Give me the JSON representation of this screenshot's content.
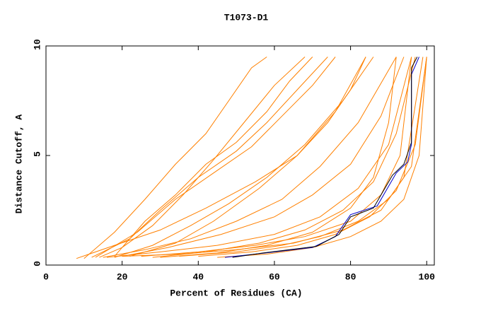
{
  "chart_data": {
    "type": "line",
    "title": "T1073-D1",
    "x_label": "Percent of Residues (CA)",
    "y_label": "Distance Cutoff, A",
    "xlim": [
      0,
      102
    ],
    "ylim": [
      0,
      10
    ],
    "xticks": [
      0,
      20,
      40,
      60,
      80,
      100
    ],
    "yticks": [
      0,
      5,
      10
    ],
    "series": [
      {
        "color": "#ff8000",
        "x": [
          14,
          20,
          28,
          36,
          44,
          52,
          60,
          68
        ],
        "values": [
          0.35,
          0.8,
          1.8,
          3.2,
          4.8,
          6.5,
          8.2,
          9.5
        ]
      },
      {
        "color": "#ff8000",
        "x": [
          10,
          18,
          26,
          34,
          42,
          48,
          54,
          58
        ],
        "values": [
          0.3,
          1.5,
          3,
          4.6,
          6,
          7.5,
          9,
          9.5
        ]
      },
      {
        "color": "#ff8000",
        "x": [
          16,
          30,
          45,
          60,
          72,
          82,
          90,
          96
        ],
        "values": [
          0.35,
          0.6,
          0.9,
          1.4,
          2.2,
          3.5,
          5.5,
          9.5
        ]
      },
      {
        "color": "#ff8000",
        "x": [
          20,
          35,
          50,
          65,
          78,
          88,
          94,
          99
        ],
        "values": [
          0.4,
          0.5,
          0.7,
          1,
          1.6,
          2.5,
          4,
          9.5
        ]
      },
      {
        "color": "#ff8000",
        "x": [
          30,
          45,
          58,
          70,
          80,
          86,
          90,
          92
        ],
        "values": [
          0.35,
          0.55,
          0.9,
          1.5,
          2.6,
          4,
          6.5,
          9.5
        ]
      },
      {
        "color": "#ff8000",
        "x": [
          12,
          22,
          30,
          40,
          50,
          58,
          66,
          74
        ],
        "values": [
          0.35,
          1.2,
          2.5,
          4,
          5.2,
          6.5,
          8,
          9.5
        ]
      },
      {
        "color": "#ff8000",
        "x": [
          25,
          40,
          55,
          68,
          80,
          88,
          93,
          96
        ],
        "values": [
          0.4,
          0.6,
          0.9,
          1.3,
          2,
          3.2,
          5,
          9.5
        ]
      },
      {
        "color": "#ff8000",
        "x": [
          18,
          28,
          38,
          48,
          58,
          68,
          78,
          86
        ],
        "values": [
          0.35,
          0.9,
          1.8,
          2.8,
          4,
          5.5,
          7.5,
          9.5
        ]
      },
      {
        "color": "#ff8000",
        "x": [
          8,
          18,
          30,
          42,
          55,
          66,
          76,
          84
        ],
        "values": [
          0.3,
          0.9,
          1.6,
          2.6,
          3.8,
          5,
          7,
          9.5
        ]
      },
      {
        "color": "#ff8000",
        "x": [
          35,
          50,
          62,
          72,
          82,
          90,
          96,
          100
        ],
        "values": [
          0.4,
          0.6,
          0.9,
          1.3,
          2,
          3,
          4.5,
          9.5
        ]
      },
      {
        "color": "#ff8000",
        "x": [
          22,
          34,
          44,
          56,
          66,
          74,
          80,
          84
        ],
        "values": [
          0.4,
          1,
          2,
          3.5,
          5,
          6.5,
          8,
          9.5
        ]
      },
      {
        "color": "#ff8000",
        "x": [
          15,
          26,
          38,
          50,
          62,
          72,
          82,
          92
        ],
        "values": [
          0.35,
          0.7,
          1.2,
          2,
          3,
          4.5,
          6.5,
          9.5
        ]
      },
      {
        "color": "#ff8000",
        "x": [
          28,
          42,
          56,
          68,
          78,
          86,
          92,
          97
        ],
        "values": [
          0.35,
          0.6,
          1,
          1.6,
          2.5,
          3.8,
          6,
          9.5
        ]
      },
      {
        "color": "#ff8000",
        "x": [
          40,
          54,
          66,
          76,
          85,
          92,
          97,
          100
        ],
        "values": [
          0.4,
          0.6,
          0.9,
          1.4,
          2.2,
          3.4,
          5.5,
          9.5
        ]
      },
      {
        "color": "#ff8000",
        "x": [
          13,
          24,
          34,
          44,
          54,
          62,
          70,
          76
        ],
        "values": [
          0.35,
          1.5,
          3,
          4.2,
          5.4,
          6.8,
          8.2,
          9.5
        ]
      },
      {
        "color": "#ff8000",
        "x": [
          20,
          32,
          46,
          60,
          70,
          80,
          88,
          94
        ],
        "values": [
          0.4,
          0.8,
          1.4,
          2.2,
          3.2,
          4.6,
          6.8,
          9.5
        ]
      },
      {
        "color": "#ff8000",
        "x": [
          18,
          26,
          34,
          42,
          50,
          58,
          64,
          70
        ],
        "values": [
          0.4,
          2,
          3.2,
          4.6,
          5.6,
          7,
          8.4,
          9.5
        ]
      },
      {
        "color": "#ff8000",
        "x": [
          45,
          58,
          70,
          80,
          88,
          94,
          98,
          100
        ],
        "values": [
          0.35,
          0.5,
          0.8,
          1.3,
          2,
          3,
          5,
          9.5
        ]
      },
      {
        "color": "#0000cc",
        "x": [
          47,
          55,
          70,
          76,
          80,
          87,
          92,
          95,
          96,
          96,
          98
        ],
        "values": [
          0.35,
          0.5,
          0.8,
          1.3,
          2.3,
          2.7,
          4.2,
          4.7,
          5.5,
          8.7,
          9.5
        ]
      },
      {
        "color": "#000000",
        "x": [
          49,
          57,
          71,
          77,
          80,
          86,
          91,
          94,
          96,
          96,
          97.5
        ],
        "values": [
          0.35,
          0.55,
          0.85,
          1.4,
          2.2,
          2.6,
          4.1,
          4.6,
          5.6,
          9,
          9.5
        ]
      }
    ]
  }
}
